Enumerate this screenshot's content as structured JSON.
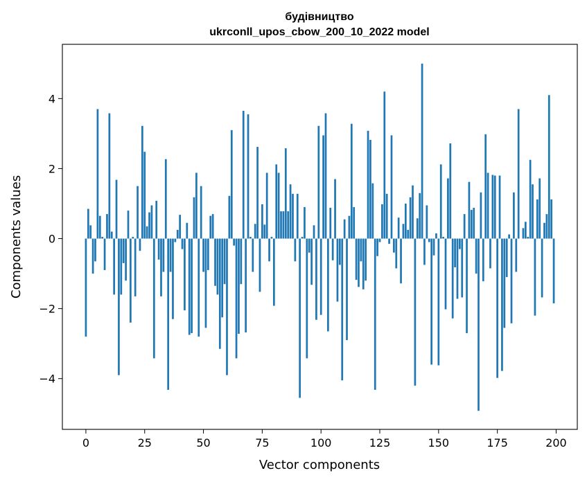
{
  "chart_data": {
    "type": "bar",
    "title": "будівництво",
    "subtitle": "ukrconll_upos_cbow_200_10_2022 model",
    "xlabel": "Vector components",
    "ylabel": "Components values",
    "xlim": [
      -10,
      209
    ],
    "ylim": [
      -5.45,
      5.55
    ],
    "xticks": [
      0,
      25,
      50,
      75,
      100,
      125,
      150,
      175,
      200
    ],
    "xtick_labels": [
      "0",
      "25",
      "50",
      "75",
      "100",
      "125",
      "150",
      "175",
      "200"
    ],
    "yticks": [
      -4,
      -2,
      0,
      2,
      4
    ],
    "ytick_labels": [
      "−4",
      "−2",
      "0",
      "2",
      "4"
    ],
    "bar_color": "#1f77b4",
    "grid": false,
    "legend": "none",
    "x": [
      0,
      1,
      2,
      3,
      4,
      5,
      6,
      7,
      8,
      9,
      10,
      11,
      12,
      13,
      14,
      15,
      16,
      17,
      18,
      19,
      20,
      21,
      22,
      23,
      24,
      25,
      26,
      27,
      28,
      29,
      30,
      31,
      32,
      33,
      34,
      35,
      36,
      37,
      38,
      39,
      40,
      41,
      42,
      43,
      44,
      45,
      46,
      47,
      48,
      49,
      50,
      51,
      52,
      53,
      54,
      55,
      56,
      57,
      58,
      59,
      60,
      61,
      62,
      63,
      64,
      65,
      66,
      67,
      68,
      69,
      70,
      71,
      72,
      73,
      74,
      75,
      76,
      77,
      78,
      79,
      80,
      81,
      82,
      83,
      84,
      85,
      86,
      87,
      88,
      89,
      90,
      91,
      92,
      93,
      94,
      95,
      96,
      97,
      98,
      99,
      100,
      101,
      102,
      103,
      104,
      105,
      106,
      107,
      108,
      109,
      110,
      111,
      112,
      113,
      114,
      115,
      116,
      117,
      118,
      119,
      120,
      121,
      122,
      123,
      124,
      125,
      126,
      127,
      128,
      129,
      130,
      131,
      132,
      133,
      134,
      135,
      136,
      137,
      138,
      139,
      140,
      141,
      142,
      143,
      144,
      145,
      146,
      147,
      148,
      149,
      150,
      151,
      152,
      153,
      154,
      155,
      156,
      157,
      158,
      159,
      160,
      161,
      162,
      163,
      164,
      165,
      166,
      167,
      168,
      169,
      170,
      171,
      172,
      173,
      174,
      175,
      176,
      177,
      178,
      179,
      180,
      181,
      182,
      183,
      184,
      185,
      186,
      187,
      188,
      189,
      190,
      191,
      192,
      193,
      194,
      195,
      196,
      197,
      198,
      199
    ],
    "values": [
      -2.8,
      0.85,
      0.38,
      -1.0,
      -0.65,
      3.7,
      0.65,
      0.05,
      -0.9,
      0.7,
      3.58,
      0.2,
      -1.6,
      1.68,
      -3.9,
      -1.6,
      -0.7,
      -1.2,
      0.8,
      -2.4,
      0.05,
      -1.65,
      1.5,
      -0.35,
      3.22,
      2.48,
      0.35,
      0.75,
      0.95,
      -3.42,
      1.08,
      -0.6,
      -1.65,
      -0.95,
      2.27,
      -4.32,
      -0.95,
      -2.3,
      -0.1,
      0.25,
      0.68,
      -0.3,
      -2.05,
      0.45,
      -2.75,
      -2.7,
      1.18,
      1.88,
      -2.8,
      1.5,
      -0.95,
      -2.55,
      -0.9,
      0.65,
      0.7,
      -1.35,
      -1.6,
      -3.15,
      -2.25,
      -1.3,
      -3.9,
      1.22,
      3.1,
      -0.2,
      -3.42,
      -2.72,
      -1.3,
      3.65,
      -2.68,
      3.55,
      0.05,
      -0.95,
      0.42,
      2.62,
      -1.52,
      0.98,
      0.4,
      1.88,
      -0.65,
      0.05,
      -1.92,
      2.12,
      1.88,
      0.78,
      0.78,
      2.58,
      0.78,
      1.55,
      1.28,
      -0.65,
      1.28,
      -4.55,
      0.05,
      0.9,
      -3.42,
      -0.4,
      -1.32,
      0.38,
      -2.32,
      3.22,
      -2.18,
      2.95,
      3.58,
      -2.65,
      0.88,
      -0.62,
      1.7,
      -1.8,
      -0.75,
      -4.05,
      0.55,
      -2.9,
      0.65,
      3.28,
      0.9,
      -1.18,
      -1.38,
      -0.65,
      -1.45,
      -1.2,
      3.08,
      2.82,
      1.58,
      -4.32,
      -0.5,
      -0.1,
      0.98,
      4.2,
      1.28,
      -0.15,
      2.95,
      -0.4,
      -0.85,
      0.6,
      -1.28,
      0.42,
      1.0,
      0.25,
      1.18,
      1.52,
      -4.2,
      0.58,
      1.3,
      5.0,
      -0.75,
      0.95,
      -0.1,
      -3.6,
      -0.48,
      0.15,
      -3.62,
      2.12,
      0.05,
      -2.02,
      1.72,
      2.72,
      -2.28,
      -0.82,
      -1.72,
      -0.3,
      -1.68,
      0.7,
      -2.7,
      1.62,
      0.82,
      0.88,
      -1.0,
      -4.92,
      1.32,
      -1.22,
      2.98,
      1.88,
      -0.85,
      1.82,
      1.8,
      -3.98,
      1.8,
      -3.78,
      -2.55,
      -1.1,
      0.12,
      -2.42,
      1.32,
      -0.95,
      3.7,
      0.0,
      0.3,
      0.48,
      0.05,
      2.25,
      1.55,
      -2.2,
      1.12,
      1.72,
      -1.68,
      0.45,
      0.7,
      4.1,
      1.12,
      -1.85
    ]
  }
}
